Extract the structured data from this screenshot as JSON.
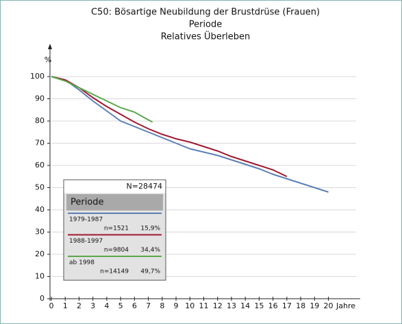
{
  "chart_data": {
    "type": "line",
    "title": "C50: Bösartige Neubildung der Brustdrüse (Frauen)",
    "subtitle": "Periode",
    "subtitle2": "Relatives Überleben",
    "ylabel": "%",
    "xlabel": "Jahre",
    "xlim": [
      0,
      22
    ],
    "ylim": [
      0,
      110
    ],
    "xticks": [
      0,
      1,
      2,
      3,
      4,
      5,
      6,
      7,
      8,
      9,
      10,
      11,
      12,
      13,
      14,
      15,
      16,
      17,
      18,
      19,
      20
    ],
    "yticks": [
      0,
      10,
      20,
      30,
      40,
      50,
      60,
      70,
      80,
      90,
      100
    ],
    "grid": true,
    "series": [
      {
        "name": "1979-1987",
        "color": "#5b7fb5",
        "n": "n=1521",
        "share": "15,9%",
        "x": [
          0,
          1,
          2,
          3,
          4,
          5,
          6,
          7,
          8,
          9,
          10,
          11,
          12,
          13,
          14,
          15,
          16,
          17,
          18,
          19,
          20
        ],
        "values": [
          100,
          98.5,
          94,
          89,
          84.5,
          80,
          77.5,
          75,
          72.5,
          70,
          67.5,
          66,
          64.5,
          62.5,
          60.5,
          58.5,
          56,
          54,
          52,
          50,
          48
        ]
      },
      {
        "name": "1988-1997",
        "color": "#a01830",
        "n": "n=9804",
        "share": "34,4%",
        "x": [
          0,
          1,
          2,
          3,
          4,
          5,
          6,
          7,
          8,
          9,
          10,
          11,
          12,
          13,
          14,
          15,
          16,
          17
        ],
        "values": [
          100,
          98.5,
          95,
          90.5,
          86.5,
          83,
          79.5,
          76.5,
          74,
          72,
          70.5,
          68.5,
          66.5,
          64,
          62,
          60,
          58,
          55
        ]
      },
      {
        "name": "ab 1998",
        "color": "#5aa84a",
        "n": "n=14149",
        "share": "49,7%",
        "x": [
          0,
          1,
          2,
          3,
          4,
          5,
          6,
          7,
          7.3
        ],
        "values": [
          100,
          98,
          95,
          92,
          89,
          86,
          84,
          80.5,
          79.5
        ]
      }
    ],
    "legend_title": "N=28474",
    "legend_header": "Periode"
  }
}
